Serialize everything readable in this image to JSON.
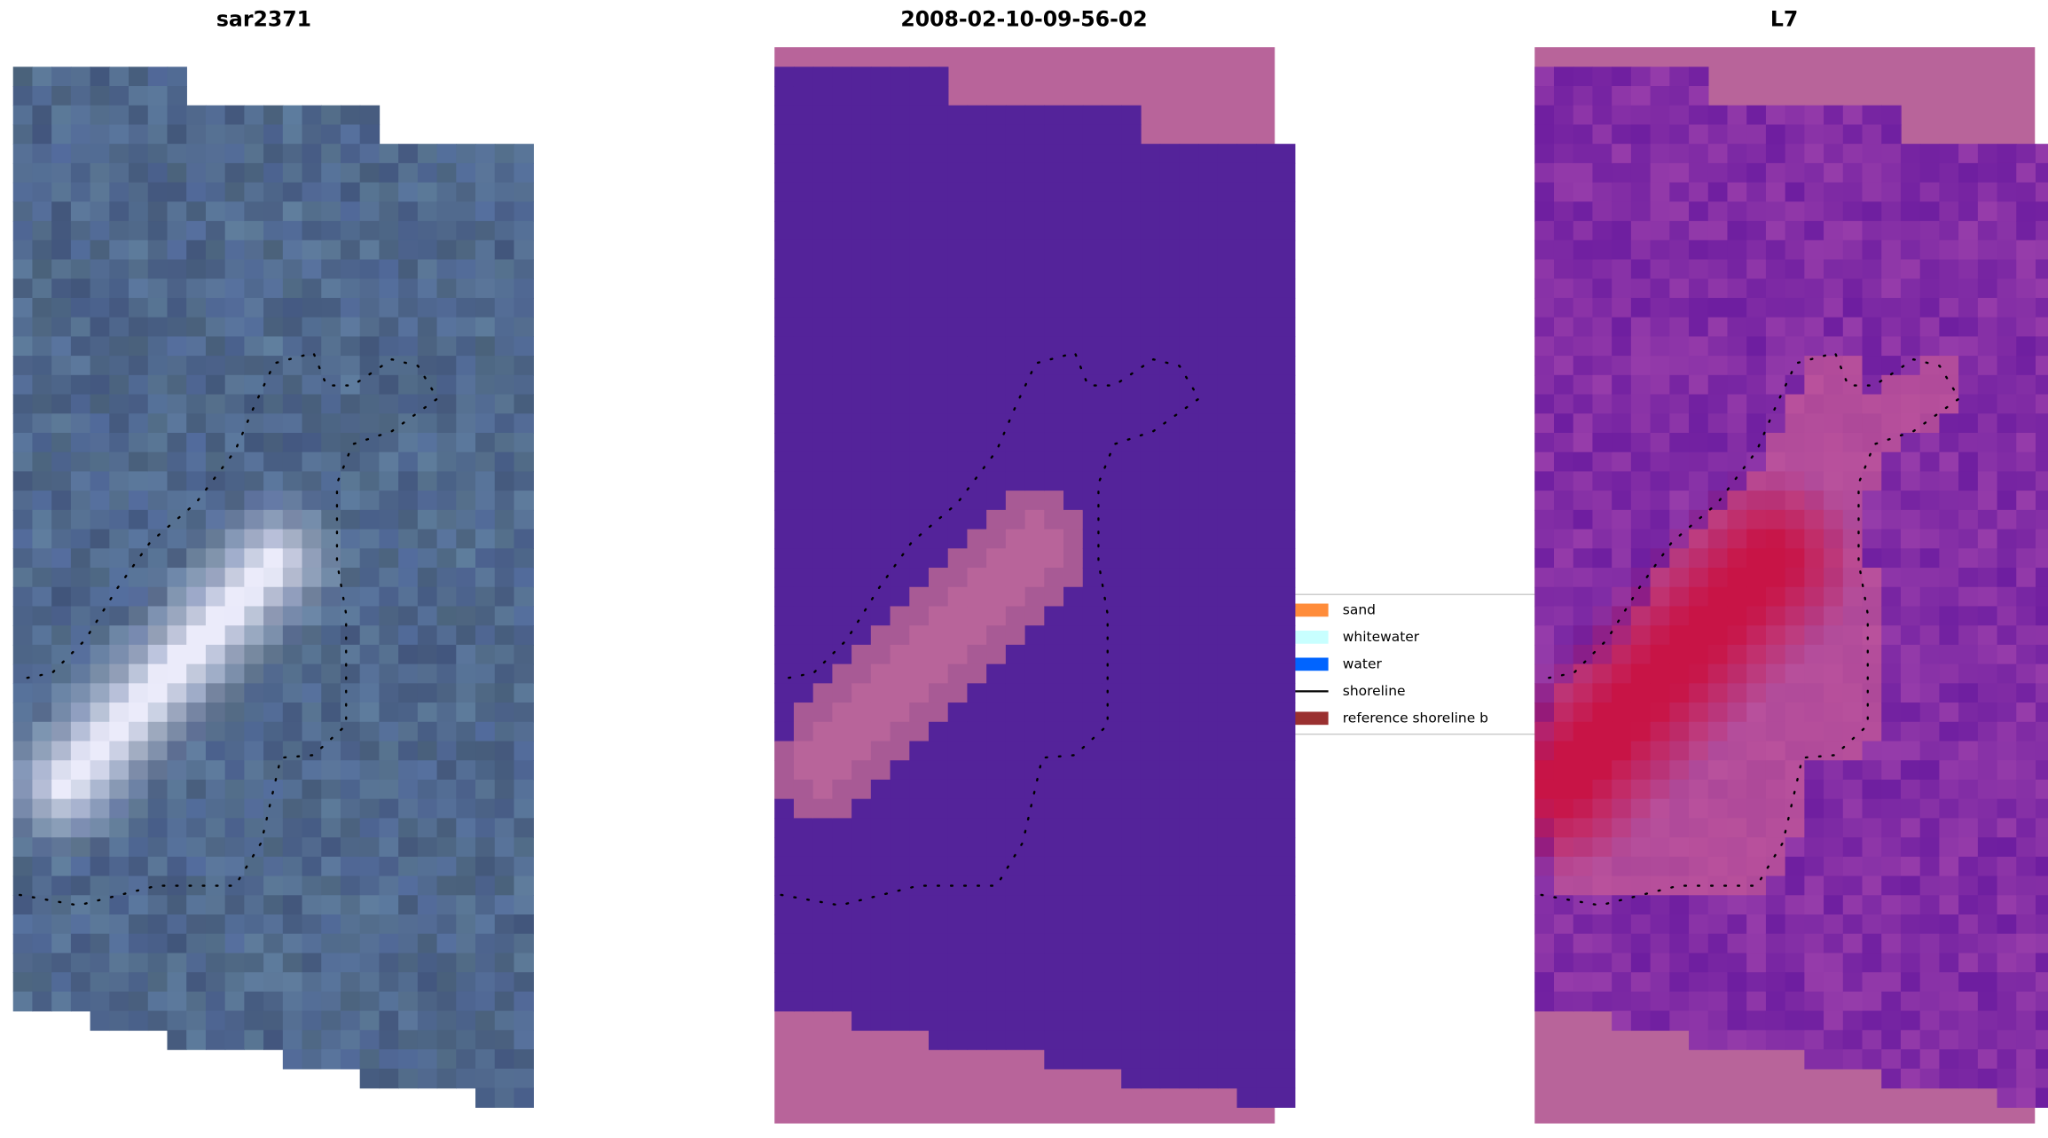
{
  "panels": [
    {
      "title": "sar2371"
    },
    {
      "title": "2008-02-10-09-56-02"
    },
    {
      "title": "L7"
    }
  ],
  "legend": {
    "items": [
      {
        "label": "sand",
        "color": "#ff8c3a",
        "kind": "patch"
      },
      {
        "label": "whitewater",
        "color": "#c8ffff",
        "kind": "patch"
      },
      {
        "label": "water",
        "color": "#0064ff",
        "kind": "patch"
      },
      {
        "label": "shoreline",
        "color": "#000000",
        "kind": "line"
      },
      {
        "label": "reference shoreline b",
        "color": "#9a3030",
        "kind": "patch"
      }
    ]
  }
}
